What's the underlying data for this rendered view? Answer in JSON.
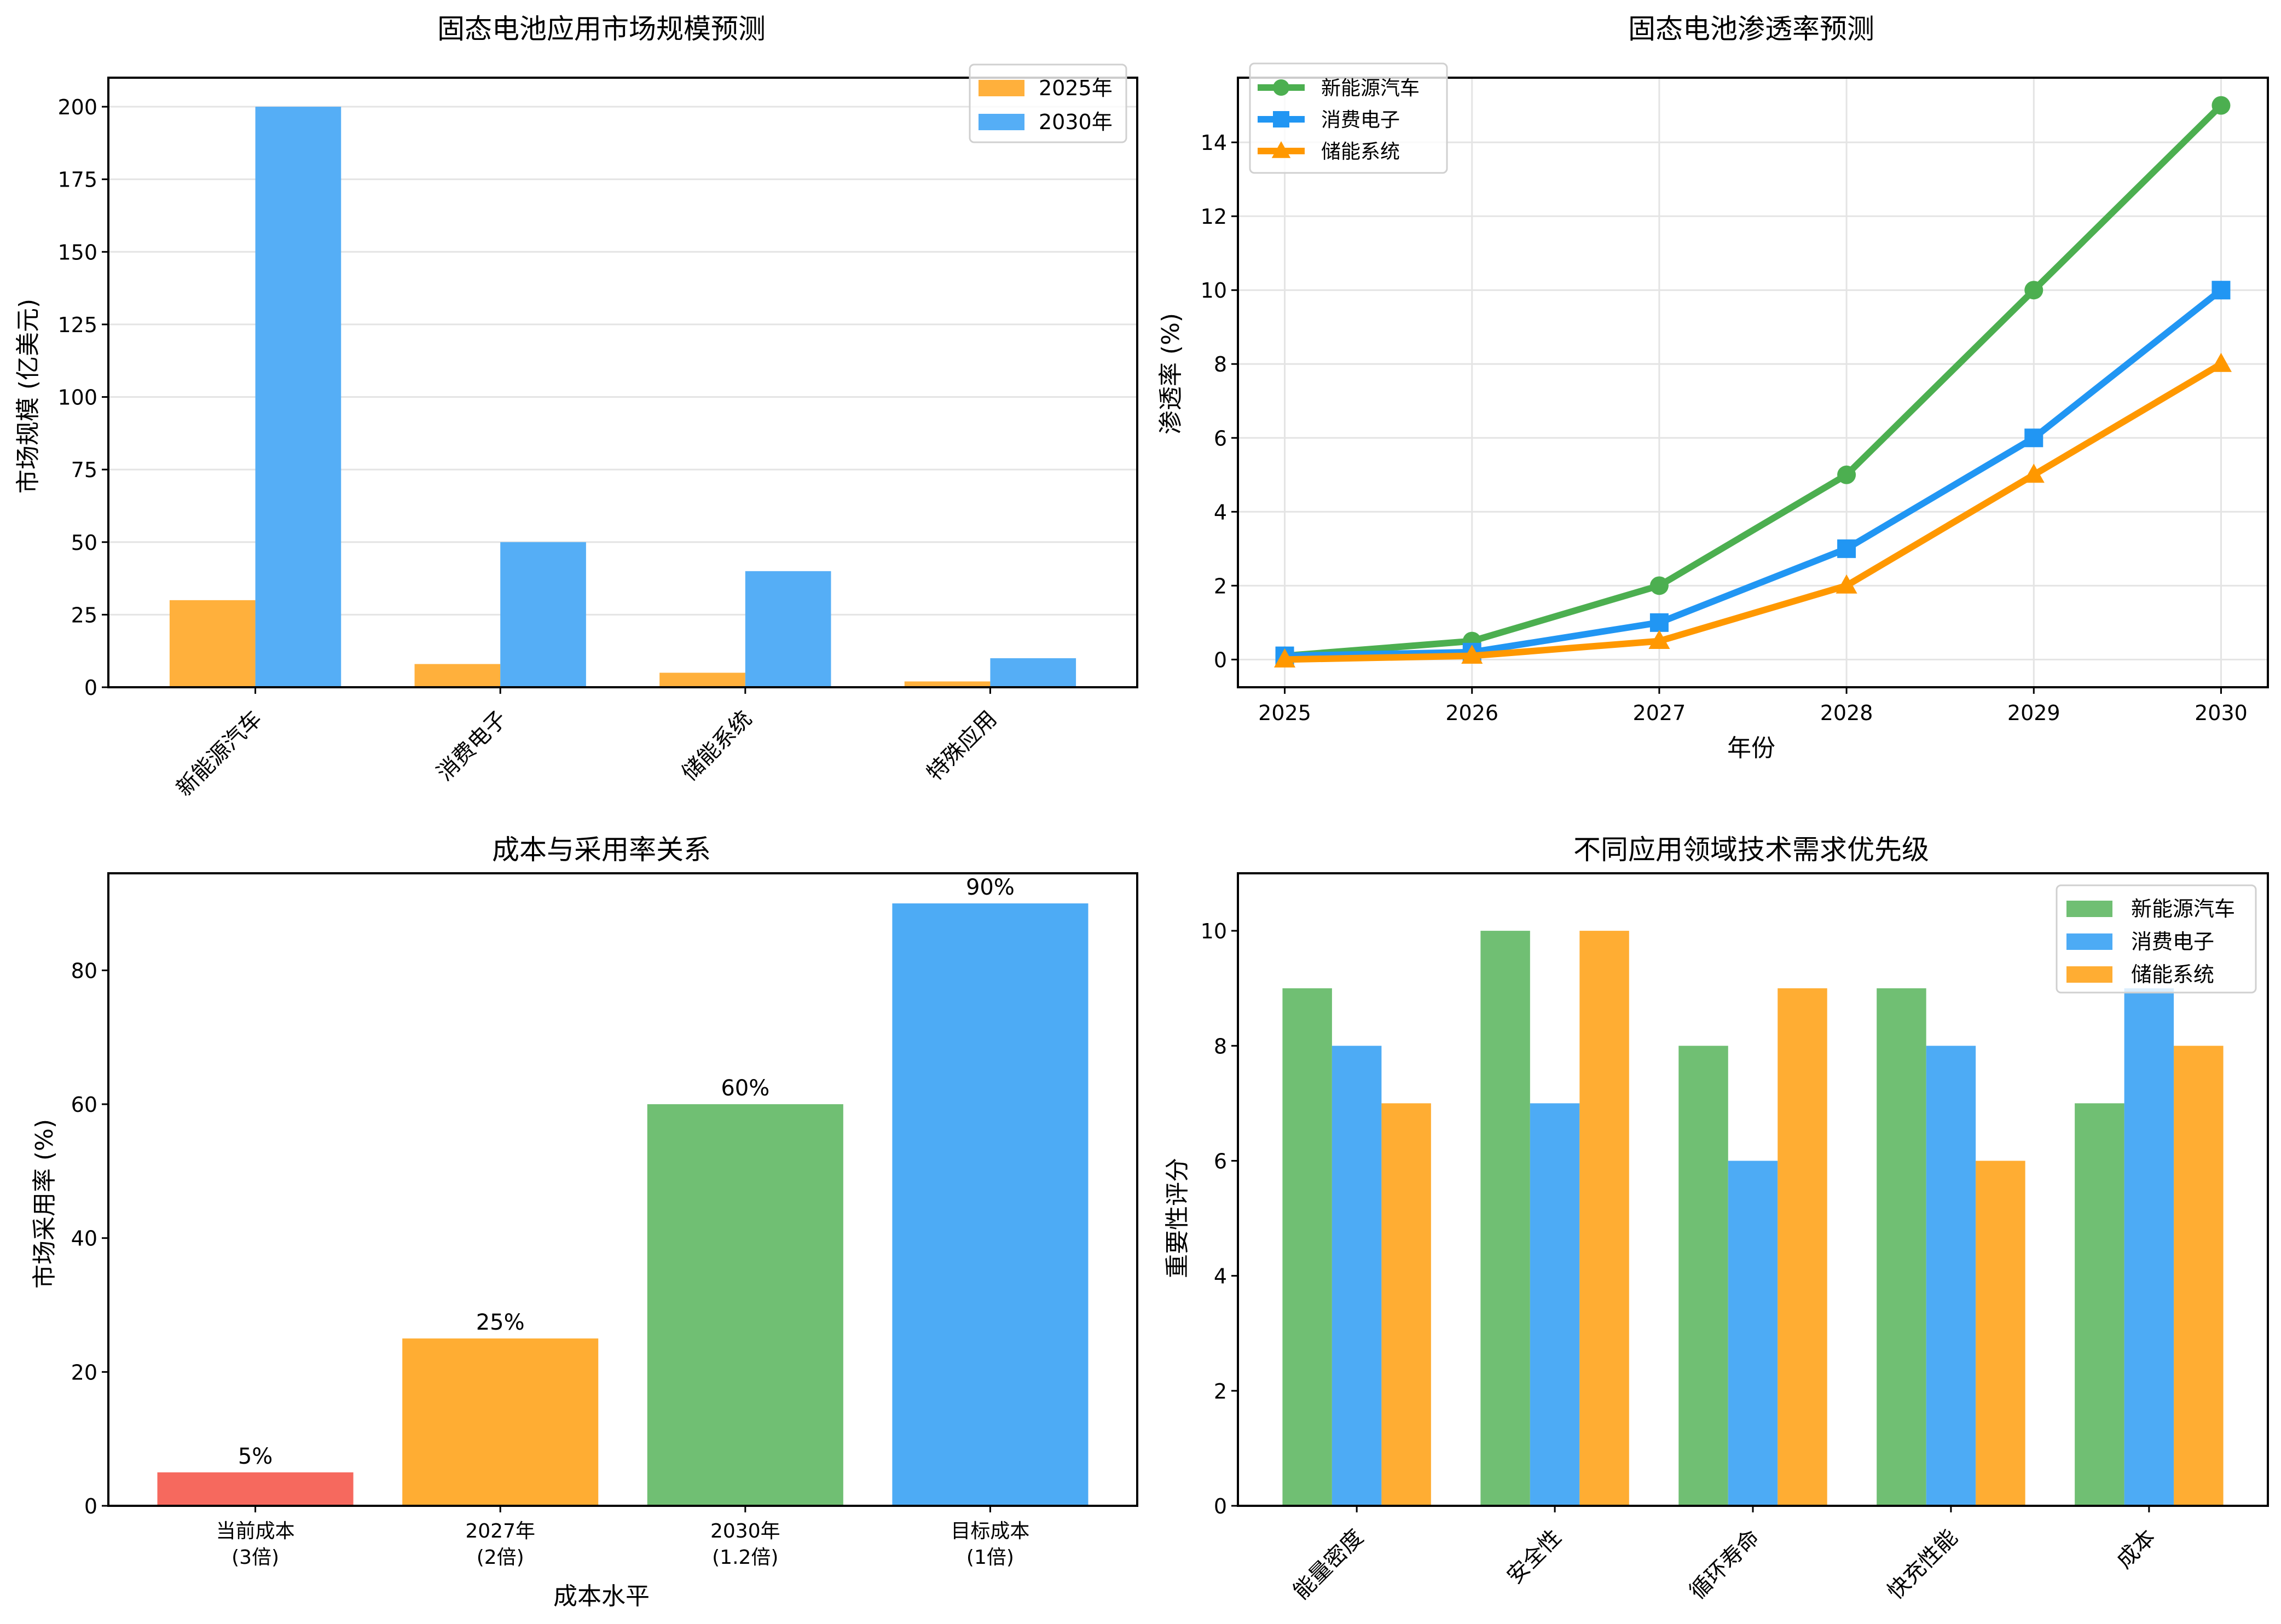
{
  "chart_data": [
    {
      "id": "market",
      "type": "bar",
      "title": "固态电池应用市场规模预测",
      "xlabel": "",
      "ylabel": "市场规模 (亿美元)",
      "categories": [
        "新能源汽车",
        "消费电子",
        "储能系统",
        "特殊应用"
      ],
      "series": [
        {
          "name": "2025年",
          "color": "#FFA726",
          "values": [
            30,
            8,
            5,
            2
          ]
        },
        {
          "name": "2030年",
          "color": "#42A5F5",
          "values": [
            200,
            50,
            40,
            10
          ]
        }
      ],
      "ylim": [
        0,
        210
      ],
      "yticks": [
        0,
        25,
        50,
        75,
        100,
        125,
        150,
        175,
        200
      ],
      "grid": "y",
      "legend": "top-right",
      "xtick_rotation": 45
    },
    {
      "id": "penetration",
      "type": "line",
      "title": "固态电池渗透率预测",
      "xlabel": "年份",
      "ylabel": "渗透率 (%)",
      "x": [
        2025,
        2026,
        2027,
        2028,
        2029,
        2030
      ],
      "series": [
        {
          "name": "新能源汽车",
          "color": "#4CAF50",
          "marker": "circle",
          "values": [
            0.1,
            0.5,
            2,
            5,
            10,
            15
          ]
        },
        {
          "name": "消费电子",
          "color": "#2196F3",
          "marker": "square",
          "values": [
            0.1,
            0.2,
            1,
            3,
            6,
            10
          ]
        },
        {
          "name": "储能系统",
          "color": "#FF9800",
          "marker": "triangle",
          "values": [
            0,
            0.1,
            0.5,
            2,
            5,
            8
          ]
        }
      ],
      "ylim": [
        -0.75,
        15.75
      ],
      "yticks": [
        0,
        2,
        4,
        6,
        8,
        10,
        12,
        14
      ],
      "grid": "both",
      "legend": "top-left"
    },
    {
      "id": "cost",
      "type": "bar",
      "title": "成本与采用率关系",
      "xlabel": "成本水平",
      "ylabel": "市场采用率 (%)",
      "categories": [
        "当前成本\n(3倍)",
        "2027年\n(2倍)",
        "2030年\n(1.2倍)",
        "目标成本\n(1倍)"
      ],
      "values": [
        5,
        25,
        60,
        90
      ],
      "data_labels": [
        "5%",
        "25%",
        "60%",
        "90%"
      ],
      "colors": [
        "#F44336",
        "#FF9800",
        "#4CAF50",
        "#2196F3"
      ],
      "ylim": [
        0,
        94.5
      ],
      "yticks": [
        0,
        20,
        40,
        60,
        80
      ],
      "grid": "none"
    },
    {
      "id": "priority",
      "type": "bar",
      "title": "不同应用领域技术需求优先级",
      "xlabel": "",
      "ylabel": "重要性评分",
      "categories": [
        "能量密度",
        "安全性",
        "循环寿命",
        "快充性能",
        "成本"
      ],
      "series": [
        {
          "name": "新能源汽车",
          "color": "#4CAF50",
          "values": [
            9,
            10,
            8,
            9,
            7
          ]
        },
        {
          "name": "消费电子",
          "color": "#2196F3",
          "values": [
            8,
            7,
            6,
            8,
            9
          ]
        },
        {
          "name": "储能系统",
          "color": "#FF9800",
          "values": [
            7,
            10,
            9,
            6,
            8
          ]
        }
      ],
      "ylim": [
        0,
        11
      ],
      "yticks": [
        0,
        2,
        4,
        6,
        8,
        10
      ],
      "grid": "none",
      "legend": "top-right",
      "xtick_rotation": 45
    }
  ]
}
